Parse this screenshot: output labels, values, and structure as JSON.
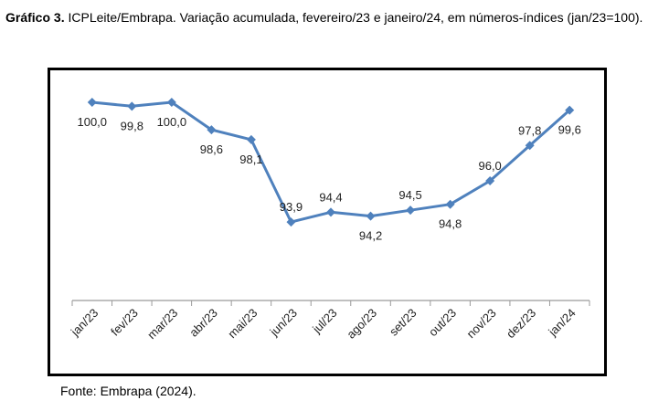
{
  "caption": {
    "label": "Gráfico 3.",
    "text": "ICPLeite/Embrapa. Variação acumulada, fevereiro/23 e janeiro/24, em números-índices (jan/23=100)."
  },
  "source": "Fonte: Embrapa (2024).",
  "chart_data": {
    "type": "line",
    "title": "",
    "xlabel": "",
    "ylabel": "",
    "categories": [
      "jan/23",
      "fev/23",
      "mar/23",
      "abr/23",
      "mai/23",
      "jun/23",
      "jul/23",
      "ago/23",
      "set/23",
      "out/23",
      "nov/23",
      "dez/23",
      "jan/24"
    ],
    "series": [
      {
        "values": [
          100.0,
          99.8,
          100.0,
          98.6,
          98.1,
          93.9,
          94.4,
          94.2,
          94.5,
          94.8,
          96.0,
          97.8,
          99.6
        ],
        "labels": [
          "100,0",
          "99,8",
          "100,0",
          "98,6",
          "98,1",
          "93,9",
          "94,4",
          "94,2",
          "94,5",
          "94,8",
          "96,0",
          "97,8",
          "99,6"
        ],
        "label_positions": [
          "below",
          "below",
          "below",
          "below",
          "below",
          "above",
          "above",
          "below",
          "above",
          "below",
          "above",
          "above",
          "below"
        ],
        "color": "#4F81BD"
      }
    ],
    "ylim": [
      89.9,
      100.7
    ],
    "grid": false,
    "legend": "none"
  }
}
